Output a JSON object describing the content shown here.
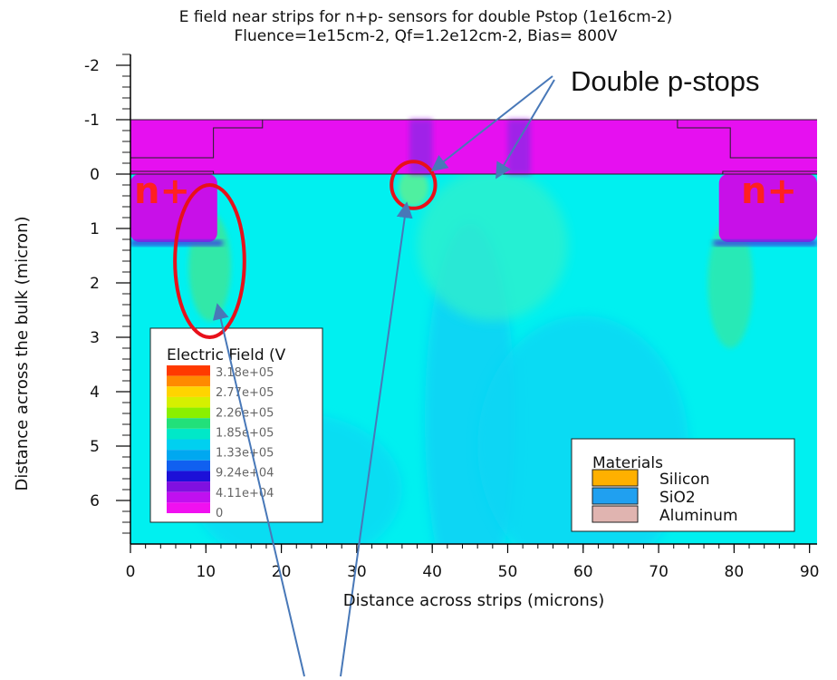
{
  "chart_data": {
    "type": "heatmap",
    "title": "E field near strips for n+p- sensors for double Pstop (1e16cm-2)",
    "subtitle": "Fluence=1e15cm-2, Qf=1.2e12cm-2, Bias= 800V",
    "xlabel": "Distance across strips (microns)",
    "ylabel": "Distance across the bulk (micron)",
    "xlim": [
      0,
      91
    ],
    "ylim": [
      -2.2,
      6.8
    ],
    "y_inverted": true,
    "x_ticks": [
      0,
      10,
      20,
      30,
      40,
      50,
      60,
      70,
      80,
      90
    ],
    "x_tick_labels": [
      "0",
      "10",
      "20",
      "30",
      "40",
      "50",
      "60",
      "70",
      "80",
      "90"
    ],
    "y_ticks": [
      -2,
      -1,
      0,
      1,
      2,
      3,
      4,
      5,
      6
    ],
    "y_tick_labels": [
      "-2",
      "-1",
      "0",
      "1",
      "2",
      "3",
      "4",
      "5",
      "6"
    ],
    "colorbar": {
      "title": "Electric Field (V",
      "labels": [
        "3.18e+05",
        "2.77e+05",
        "2.26e+05",
        "1.85e+05",
        "1.33e+05",
        "9.24e+04",
        "4.11e+04",
        "0"
      ],
      "values": [
        318000,
        277000,
        226000,
        185000,
        133000,
        92400,
        41100,
        0
      ],
      "colors": [
        "#ff3a00",
        "#ff8a00",
        "#ffd400",
        "#d6f000",
        "#8af000",
        "#22e07a",
        "#00e8c8",
        "#00d0f0",
        "#00a8f0",
        "#1060f0",
        "#1c10d8",
        "#8010e0",
        "#c010f0",
        "#f010f0"
      ]
    },
    "materials_legend": {
      "title": "Materials",
      "items": [
        {
          "label": "Silicon",
          "color": "#ffb000"
        },
        {
          "label": "SiO2",
          "color": "#20a0f0"
        },
        {
          "label": "Aluminum",
          "color": "#e0b4b0"
        }
      ]
    },
    "regions": {
      "oxide": {
        "x": [
          0,
          91
        ],
        "y": [
          -1,
          0
        ]
      },
      "n_plus_left": {
        "x": [
          0,
          11.5
        ],
        "y": [
          0,
          1.25
        ]
      },
      "n_plus_right": {
        "x": [
          78,
          91
        ],
        "y": [
          0,
          1.25
        ]
      },
      "p_stops": [
        {
          "x": [
            37,
            40
          ]
        },
        {
          "x": [
            50,
            53
          ]
        }
      ]
    },
    "annotations": [
      {
        "text": "Double p-stops",
        "points_to": [
          [
            40,
            0
          ],
          [
            48.5,
            0
          ]
        ]
      },
      {
        "text": "n+",
        "at": "left strip"
      },
      {
        "text": "n+",
        "at": "right strip"
      }
    ],
    "highlights": [
      {
        "shape": "ellipse",
        "center": [
          10.5,
          1.6
        ],
        "rx": 4.6,
        "ry": 1.4
      },
      {
        "shape": "circle",
        "center": [
          37.5,
          0.2
        ],
        "rx": 2.9,
        "ry": 0.43
      }
    ],
    "colors": {
      "bulk": "#00f0f0",
      "oxide": "#e610f0",
      "nplus": "#c810e8",
      "low_field_column": "#08d6f4",
      "high_field": "#30e8a8",
      "ellipse": "#e8101a",
      "arrow": "#4878b8"
    }
  }
}
